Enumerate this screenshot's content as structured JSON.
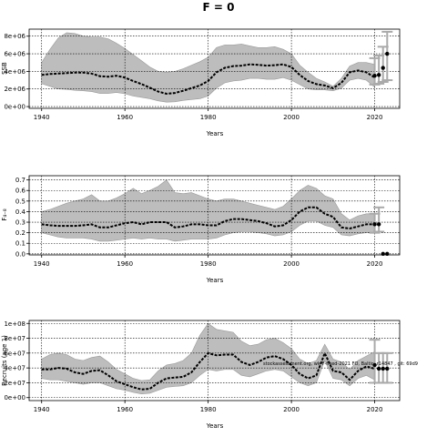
{
  "figure": {
    "title": "F = 0",
    "note": "stockassessment.org, wk-F-fixed-2021 FO, Baltic, r14847 , git: 69d9"
  },
  "chart_data": [
    {
      "type": "line",
      "id": "ssb",
      "xlabel": "Years",
      "ylabel": "SSB",
      "xlim": [
        1937,
        2026
      ],
      "ylim": [
        -200000,
        8800000
      ],
      "xticks": [
        1940,
        1960,
        1980,
        2000,
        2020
      ],
      "yticks": [
        0,
        2000000,
        4000000,
        6000000,
        8000000
      ],
      "ytick_labels": [
        "0e+00",
        "2e+06",
        "4e+06",
        "6e+06",
        "8e+06"
      ],
      "grid": true,
      "x": [
        1940,
        1942,
        1944,
        1946,
        1948,
        1950,
        1952,
        1954,
        1956,
        1958,
        1960,
        1962,
        1964,
        1966,
        1968,
        1970,
        1972,
        1974,
        1976,
        1978,
        1980,
        1982,
        1984,
        1986,
        1988,
        1990,
        1992,
        1994,
        1996,
        1998,
        2000,
        2002,
        2004,
        2006,
        2008,
        2010,
        2012,
        2014,
        2016,
        2018,
        2020
      ],
      "series": [
        {
          "values": [
            3600000,
            3700000,
            3750000,
            3800000,
            3850000,
            3850000,
            3750000,
            3450000,
            3400000,
            3500000,
            3300000,
            2900000,
            2550000,
            2150000,
            1700000,
            1450000,
            1550000,
            1800000,
            2100000,
            2400000,
            2900000,
            3900000,
            4400000,
            4600000,
            4650000,
            4800000,
            4750000,
            4650000,
            4700000,
            4800000,
            4500000,
            3600000,
            2900000,
            2550000,
            2400000,
            2100000,
            2700000,
            3900000,
            4100000,
            3900000,
            3300000
          ]
        },
        {
          "values": [
            5000000,
            6500000,
            7800000,
            8400000,
            8300000,
            8000000,
            7900000,
            7900000,
            7700000,
            7200000,
            6600000,
            5900000,
            5200000,
            4500000,
            4000000,
            3900000,
            4000000,
            4300000,
            4700000,
            5100000,
            5600000,
            6700000,
            7000000,
            7000000,
            7100000,
            6900000,
            6700000,
            6700000,
            6800000,
            6500000,
            6000000,
            4700000,
            3900000,
            3200000,
            2800000,
            2300000,
            3200000,
            4600000,
            5000000,
            5000000,
            4800000
          ]
        },
        {
          "values": [
            2600000,
            2300000,
            2000000,
            1950000,
            1850000,
            1800000,
            1700000,
            1500000,
            1500000,
            1600000,
            1450000,
            1200000,
            1050000,
            900000,
            650000,
            500000,
            550000,
            700000,
            800000,
            900000,
            1200000,
            2100000,
            2700000,
            2900000,
            3000000,
            3200000,
            3200000,
            3100000,
            3100000,
            3300000,
            3000000,
            2500000,
            2000000,
            1900000,
            1900000,
            1800000,
            2100000,
            3000000,
            3200000,
            3000000,
            2200000
          ]
        }
      ],
      "points": {
        "x": [
          2020,
          2021,
          2022,
          2023
        ],
        "y": [
          3500000,
          3600000,
          4400000,
          6000000
        ]
      },
      "errorbars": [
        {
          "x": 2020,
          "low": 2500000,
          "high": 5500000
        },
        {
          "x": 2021,
          "low": 2600000,
          "high": 5800000
        },
        {
          "x": 2022,
          "low": 2800000,
          "high": 6800000
        },
        {
          "x": 2023,
          "low": 3000000,
          "high": 8500000
        }
      ]
    },
    {
      "type": "line",
      "id": "fbar",
      "xlabel": "Years",
      "ylabel": "F₄₋₈",
      "xlim": [
        1937,
        2026
      ],
      "ylim": [
        -0.01,
        0.74
      ],
      "xticks": [
        1940,
        1960,
        1980,
        2000,
        2020
      ],
      "yticks": [
        0.0,
        0.1,
        0.2,
        0.3,
        0.4,
        0.5,
        0.6,
        0.7
      ],
      "ytick_labels": [
        "0.0",
        "0.1",
        "0.2",
        "0.3",
        "0.4",
        "0.5",
        "0.6",
        "0.7"
      ],
      "grid": true,
      "x": [
        1940,
        1942,
        1944,
        1946,
        1948,
        1950,
        1952,
        1954,
        1956,
        1958,
        1960,
        1962,
        1964,
        1966,
        1968,
        1970,
        1972,
        1974,
        1976,
        1978,
        1980,
        1982,
        1984,
        1986,
        1988,
        1990,
        1992,
        1994,
        1996,
        1998,
        2000,
        2002,
        2004,
        2006,
        2008,
        2010,
        2012,
        2014,
        2016,
        2018,
        2020
      ],
      "series": [
        {
          "values": [
            0.28,
            0.27,
            0.265,
            0.265,
            0.265,
            0.27,
            0.28,
            0.25,
            0.25,
            0.27,
            0.29,
            0.3,
            0.28,
            0.3,
            0.3,
            0.3,
            0.25,
            0.26,
            0.28,
            0.28,
            0.27,
            0.27,
            0.31,
            0.33,
            0.33,
            0.32,
            0.31,
            0.29,
            0.26,
            0.27,
            0.32,
            0.4,
            0.44,
            0.44,
            0.38,
            0.35,
            0.25,
            0.24,
            0.26,
            0.28,
            0.28
          ]
        },
        {
          "values": [
            0.4,
            0.42,
            0.45,
            0.48,
            0.5,
            0.52,
            0.56,
            0.5,
            0.5,
            0.53,
            0.57,
            0.62,
            0.57,
            0.6,
            0.64,
            0.7,
            0.58,
            0.57,
            0.58,
            0.55,
            0.52,
            0.5,
            0.52,
            0.52,
            0.5,
            0.48,
            0.46,
            0.44,
            0.42,
            0.45,
            0.52,
            0.6,
            0.65,
            0.62,
            0.55,
            0.52,
            0.38,
            0.32,
            0.36,
            0.38,
            0.38
          ]
        },
        {
          "values": [
            0.2,
            0.18,
            0.16,
            0.15,
            0.15,
            0.15,
            0.14,
            0.12,
            0.12,
            0.13,
            0.14,
            0.15,
            0.14,
            0.15,
            0.14,
            0.14,
            0.12,
            0.13,
            0.14,
            0.14,
            0.14,
            0.15,
            0.18,
            0.2,
            0.21,
            0.21,
            0.2,
            0.19,
            0.17,
            0.18,
            0.21,
            0.27,
            0.31,
            0.31,
            0.27,
            0.25,
            0.18,
            0.17,
            0.19,
            0.2,
            0.2
          ]
        }
      ],
      "points": {
        "x": [
          2020,
          2021,
          2022,
          2023
        ],
        "y": [
          0.28,
          0.28,
          0.0,
          0.0
        ]
      },
      "errorbars": [
        {
          "x": 2020,
          "low": 0.2,
          "high": 0.38
        },
        {
          "x": 2021,
          "low": 0.21,
          "high": 0.44
        }
      ]
    },
    {
      "type": "line",
      "id": "recruits",
      "xlabel": "Years",
      "ylabel": "Recruits (age 1)",
      "xlim": [
        1937,
        2026
      ],
      "ylim": [
        -0.2,
        5.2
      ],
      "xticks": [
        1940,
        1960,
        1980,
        2000,
        2020
      ],
      "yticks": [
        0,
        1,
        2,
        3,
        4,
        5
      ],
      "ytick_labels": [
        "0e+00",
        "2e+07",
        "4e+07",
        "6e+07",
        "8e+07",
        "1e+08"
      ],
      "grid": true,
      "x": [
        1940,
        1942,
        1944,
        1946,
        1948,
        1950,
        1952,
        1954,
        1956,
        1958,
        1960,
        1962,
        1964,
        1966,
        1968,
        1970,
        1972,
        1974,
        1976,
        1978,
        1980,
        1982,
        1984,
        1986,
        1988,
        1990,
        1992,
        1994,
        1996,
        1998,
        2000,
        2002,
        2004,
        2006,
        2008,
        2010,
        2012,
        2014,
        2016,
        2018,
        2020
      ],
      "series": [
        {
          "values": [
            1.9,
            1.9,
            2.0,
            1.95,
            1.7,
            1.6,
            1.8,
            1.85,
            1.5,
            1.1,
            0.9,
            0.7,
            0.55,
            0.6,
            1.0,
            1.3,
            1.35,
            1.4,
            1.7,
            2.4,
            3.0,
            2.85,
            2.9,
            2.9,
            2.4,
            2.2,
            2.4,
            2.7,
            2.8,
            2.6,
            2.2,
            1.6,
            1.3,
            1.5,
            3.0,
            1.8,
            1.7,
            1.2,
            1.8,
            2.1,
            1.95
          ]
        },
        {
          "values": [
            2.6,
            2.9,
            3.0,
            2.9,
            2.6,
            2.5,
            2.7,
            2.8,
            2.4,
            1.9,
            1.6,
            1.3,
            1.15,
            1.2,
            1.8,
            2.2,
            2.3,
            2.5,
            3.0,
            4.2,
            5.0,
            4.6,
            4.5,
            4.4,
            3.8,
            3.5,
            3.6,
            3.9,
            4.0,
            3.7,
            3.3,
            2.6,
            2.3,
            2.5,
            3.6,
            2.6,
            2.4,
            1.9,
            2.5,
            2.8,
            3.1
          ]
        },
        {
          "values": [
            1.3,
            1.2,
            1.2,
            1.1,
            1.0,
            0.9,
            1.0,
            1.0,
            0.8,
            0.6,
            0.5,
            0.35,
            0.25,
            0.3,
            0.5,
            0.7,
            0.75,
            0.8,
            1.0,
            1.5,
            1.9,
            1.8,
            1.9,
            1.9,
            1.5,
            1.4,
            1.6,
            1.8,
            1.9,
            1.8,
            1.4,
            1.0,
            0.8,
            1.0,
            2.5,
            1.3,
            1.2,
            0.8,
            1.3,
            1.5,
            1.2
          ]
        }
      ],
      "points": {
        "x": [
          2020,
          2021,
          2022,
          2023
        ],
        "y": [
          2.2,
          1.95,
          1.95,
          1.95
        ]
      },
      "errorbars": [
        {
          "x": 2020,
          "low": 1.0,
          "high": 3.9
        },
        {
          "x": 2021,
          "low": 1.0,
          "high": 3.0
        },
        {
          "x": 2022,
          "low": 1.0,
          "high": 3.0
        },
        {
          "x": 2023,
          "low": 1.0,
          "high": 3.0
        }
      ]
    }
  ],
  "colors": {
    "band": "#bdbdbd",
    "band_edge": "#9a9a9a",
    "line": "#000000",
    "errorbar": "#aaaaaa",
    "grid": "#000000"
  }
}
